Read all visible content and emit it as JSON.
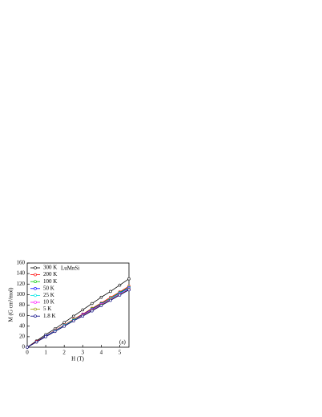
{
  "chart_data": {
    "type": "line",
    "annotations": [
      "LuMnSi",
      "(a)"
    ],
    "xlabel": "H (T)",
    "ylabel": "M (G cm³/mol)",
    "x": [
      0,
      0.5,
      1,
      1.5,
      2,
      2.5,
      3,
      3.5,
      4,
      4.5,
      5,
      5.5
    ],
    "series": [
      {
        "name": "300 K",
        "color": "#000000",
        "values": [
          0,
          12,
          24,
          35,
          47,
          59,
          71,
          83,
          95,
          106,
          118,
          130
        ]
      },
      {
        "name": "200 K",
        "color": "#ff0000",
        "values": [
          0,
          11,
          21,
          32,
          42,
          53,
          63,
          74,
          84,
          95,
          105,
          116
        ]
      },
      {
        "name": "100 K",
        "color": "#00cc00",
        "values": [
          0,
          10,
          21,
          31,
          41,
          52,
          62,
          73,
          83,
          93,
          104,
          114
        ]
      },
      {
        "name": "50 K",
        "color": "#0000ff",
        "values": [
          0,
          10,
          21,
          31,
          41,
          51,
          62,
          72,
          82,
          92,
          103,
          113
        ]
      },
      {
        "name": "25 K",
        "color": "#00e5e5",
        "values": [
          0,
          10,
          20,
          31,
          41,
          51,
          61,
          71,
          81,
          92,
          102,
          112
        ]
      },
      {
        "name": "10 K",
        "color": "#ff00ff",
        "values": [
          0,
          10,
          20,
          30,
          40,
          50,
          61,
          71,
          81,
          91,
          101,
          111
        ]
      },
      {
        "name": "5 K",
        "color": "#999900",
        "values": [
          0,
          10,
          20,
          30,
          40,
          50,
          60,
          70,
          80,
          90,
          100,
          110
        ]
      },
      {
        "name": "1.8 K",
        "color": "#000080",
        "values": [
          0,
          10,
          20,
          30,
          40,
          50,
          59,
          69,
          79,
          89,
          99,
          109
        ]
      }
    ],
    "xlim": [
      0,
      5.5
    ],
    "xticks": [
      0,
      1,
      2,
      3,
      4,
      5
    ],
    "ylim": [
      0,
      160
    ],
    "yticks": [
      0,
      20,
      40,
      60,
      80,
      100,
      120,
      140,
      160
    ],
    "legend": "upper left"
  }
}
